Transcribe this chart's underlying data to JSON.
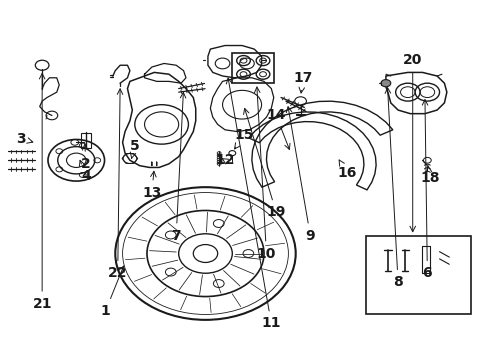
{
  "background_color": "#ffffff",
  "line_color": "#1a1a1a",
  "label_fontsize": 10,
  "figsize": [
    4.89,
    3.6
  ],
  "dpi": 100,
  "labels": {
    "1": [
      0.215,
      0.135,
      0.26,
      0.265
    ],
    "2": [
      0.175,
      0.545,
      0.165,
      0.62
    ],
    "3": [
      0.042,
      0.615,
      0.07,
      0.605
    ],
    "4": [
      0.175,
      0.51,
      0.165,
      0.565
    ],
    "5": [
      0.275,
      0.595,
      0.27,
      0.555
    ],
    "6": [
      0.875,
      0.24,
      0.86,
      0.33
    ],
    "7": [
      0.36,
      0.345,
      0.39,
      0.38
    ],
    "8": [
      0.815,
      0.215,
      0.8,
      0.245
    ],
    "9": [
      0.635,
      0.345,
      0.6,
      0.39
    ],
    "10": [
      0.545,
      0.295,
      0.545,
      0.37
    ],
    "11": [
      0.555,
      0.1,
      0.495,
      0.135
    ],
    "12": [
      0.46,
      0.555,
      0.455,
      0.53
    ],
    "13": [
      0.31,
      0.465,
      0.33,
      0.505
    ],
    "14": [
      0.565,
      0.68,
      0.565,
      0.595
    ],
    "15": [
      0.5,
      0.625,
      0.485,
      0.58
    ],
    "16": [
      0.71,
      0.52,
      0.695,
      0.555
    ],
    "17": [
      0.62,
      0.785,
      0.615,
      0.73
    ],
    "18": [
      0.88,
      0.505,
      0.875,
      0.53
    ],
    "19": [
      0.565,
      0.41,
      0.55,
      0.455
    ],
    "20": [
      0.845,
      0.835,
      0.845,
      0.785
    ],
    "21": [
      0.085,
      0.155,
      0.085,
      0.275
    ],
    "22": [
      0.24,
      0.24,
      0.23,
      0.295
    ]
  }
}
